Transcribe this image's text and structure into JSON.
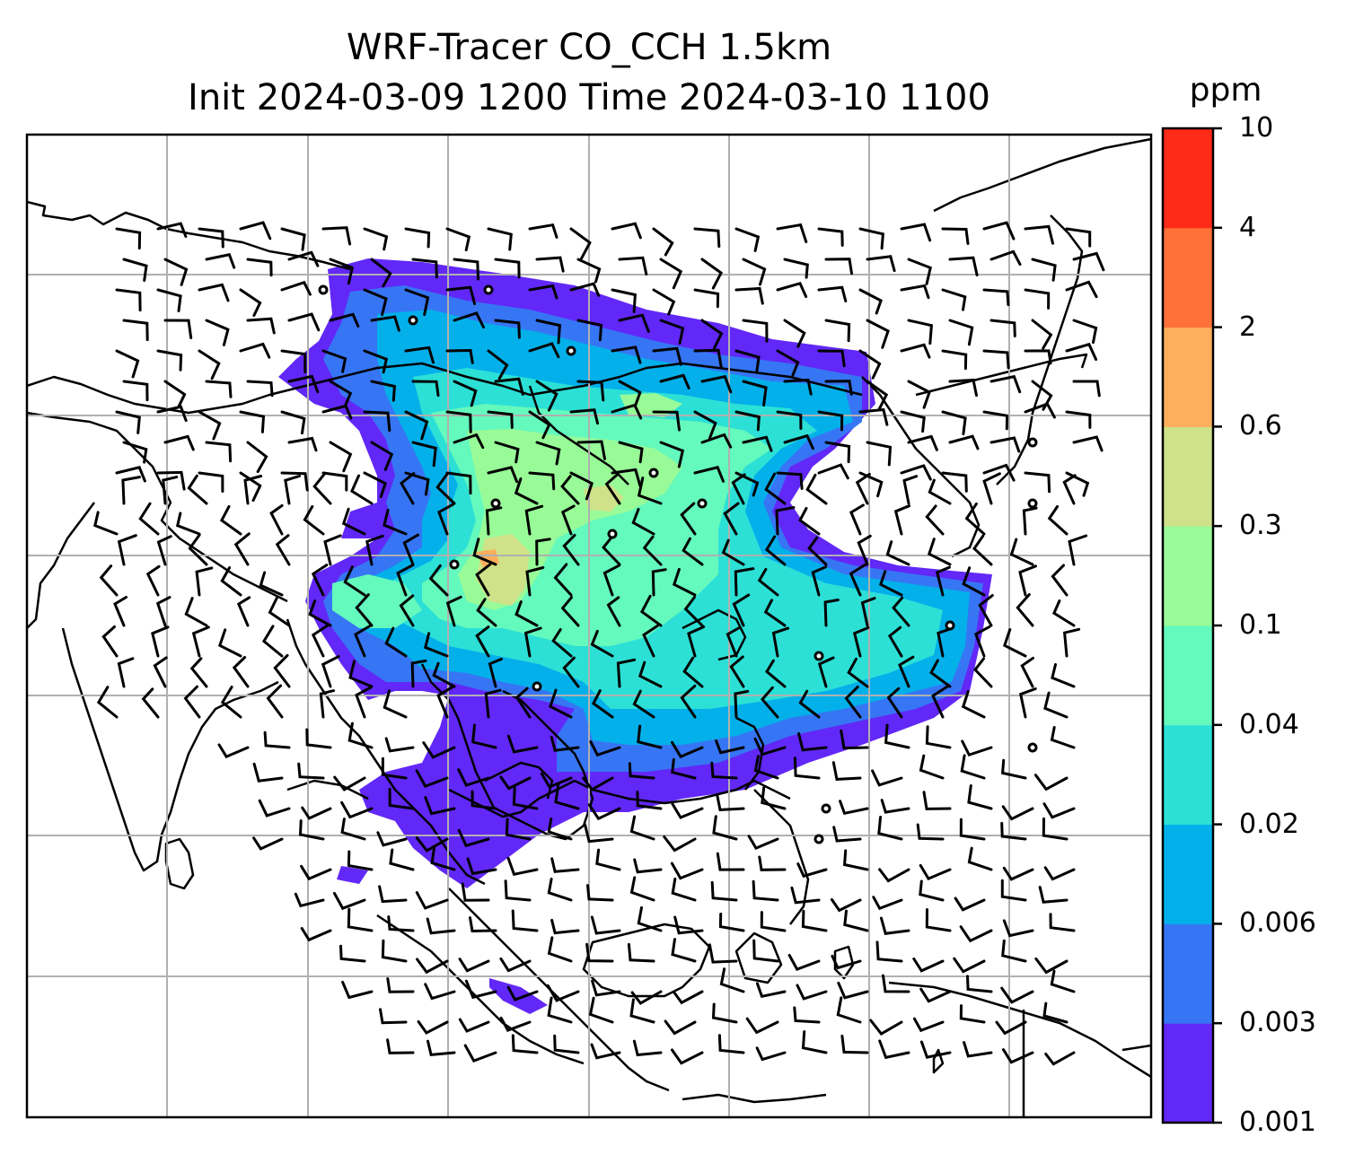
{
  "title_line1": "WRF-Tracer CO_CCH 1.5km",
  "title_line2": "Init 2024-03-09 1200 Time 2024-03-10 1100",
  "colorbar": {
    "unit": "ppm",
    "levels": [
      "0.001",
      "0.003",
      "0.006",
      "0.02",
      "0.04",
      "0.1",
      "0.3",
      "0.6",
      "2",
      "4",
      "10"
    ],
    "colors": [
      "#6228f7",
      "#3676f4",
      "#04b0ea",
      "#2ce0d6",
      "#64f9bd",
      "#98fb98",
      "#cfe189",
      "#feaf5d",
      "#ff7139",
      "#ff2a17"
    ]
  },
  "map": {
    "field": "CO_CCH tracer concentration at 1.5 km",
    "coastline_color": "#000000",
    "gridline_color": "#b0b0b0",
    "wind_symbols": "wind barbs and calm circles"
  }
}
